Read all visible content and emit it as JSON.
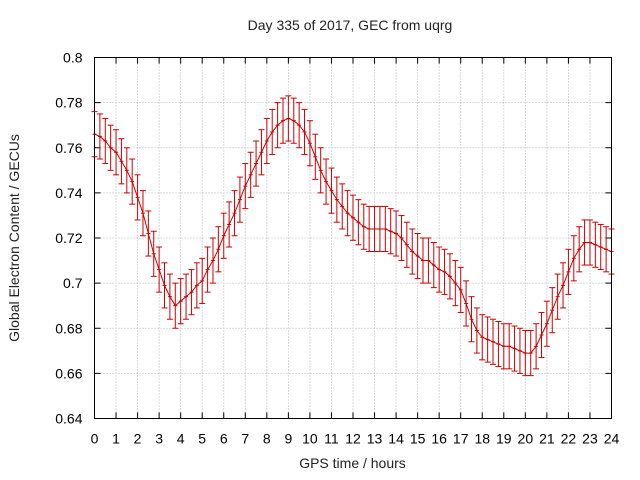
{
  "chart_data": {
    "type": "line",
    "title": "Day 335 of 2017, GEC from uqrg",
    "xlabel": "GPS time / hours",
    "ylabel": "Global Electron Content / GECUs",
    "xlim": [
      0,
      24
    ],
    "ylim": [
      0.64,
      0.8
    ],
    "xticks": [
      0,
      1,
      2,
      3,
      4,
      5,
      6,
      7,
      8,
      9,
      10,
      11,
      12,
      13,
      14,
      15,
      16,
      17,
      18,
      19,
      20,
      21,
      22,
      23,
      24
    ],
    "yticks": [
      0.64,
      0.66,
      0.68,
      0.7,
      0.72,
      0.74,
      0.76,
      0.78,
      0.8
    ],
    "grid": true,
    "series": [
      {
        "name": "GEC",
        "color": "#cc0000",
        "error": 0.01,
        "x": [
          0,
          0.25,
          0.5,
          0.75,
          1,
          1.25,
          1.5,
          1.75,
          2,
          2.25,
          2.5,
          2.75,
          3,
          3.25,
          3.5,
          3.75,
          4,
          4.25,
          4.5,
          4.75,
          5,
          5.25,
          5.5,
          5.75,
          6,
          6.25,
          6.5,
          6.75,
          7,
          7.25,
          7.5,
          7.75,
          8,
          8.25,
          8.5,
          8.75,
          9,
          9.25,
          9.5,
          9.75,
          10,
          10.25,
          10.5,
          10.75,
          11,
          11.25,
          11.5,
          11.75,
          12,
          12.25,
          12.5,
          12.75,
          13,
          13.25,
          13.5,
          13.75,
          14,
          14.25,
          14.5,
          14.75,
          15,
          15.25,
          15.5,
          15.75,
          16,
          16.25,
          16.5,
          16.75,
          17,
          17.25,
          17.5,
          17.75,
          18,
          18.25,
          18.5,
          18.75,
          19,
          19.25,
          19.5,
          19.75,
          20,
          20.25,
          20.5,
          20.75,
          21,
          21.25,
          21.5,
          21.75,
          22,
          22.25,
          22.5,
          22.75,
          23,
          23.25,
          23.5,
          23.75,
          24
        ],
        "y": [
          0.766,
          0.765,
          0.763,
          0.76,
          0.758,
          0.754,
          0.75,
          0.745,
          0.738,
          0.731,
          0.722,
          0.713,
          0.706,
          0.699,
          0.694,
          0.69,
          0.692,
          0.694,
          0.696,
          0.699,
          0.701,
          0.706,
          0.71,
          0.715,
          0.721,
          0.726,
          0.731,
          0.737,
          0.743,
          0.748,
          0.753,
          0.758,
          0.763,
          0.767,
          0.77,
          0.772,
          0.773,
          0.772,
          0.77,
          0.767,
          0.762,
          0.756,
          0.75,
          0.745,
          0.741,
          0.737,
          0.734,
          0.731,
          0.729,
          0.727,
          0.725,
          0.724,
          0.724,
          0.724,
          0.724,
          0.723,
          0.722,
          0.72,
          0.717,
          0.714,
          0.712,
          0.71,
          0.71,
          0.708,
          0.706,
          0.705,
          0.703,
          0.7,
          0.697,
          0.691,
          0.684,
          0.679,
          0.676,
          0.675,
          0.674,
          0.673,
          0.672,
          0.672,
          0.671,
          0.67,
          0.669,
          0.669,
          0.672,
          0.677,
          0.682,
          0.688,
          0.694,
          0.699,
          0.705,
          0.711,
          0.715,
          0.718,
          0.718,
          0.717,
          0.716,
          0.715,
          0.714
        ]
      }
    ]
  }
}
